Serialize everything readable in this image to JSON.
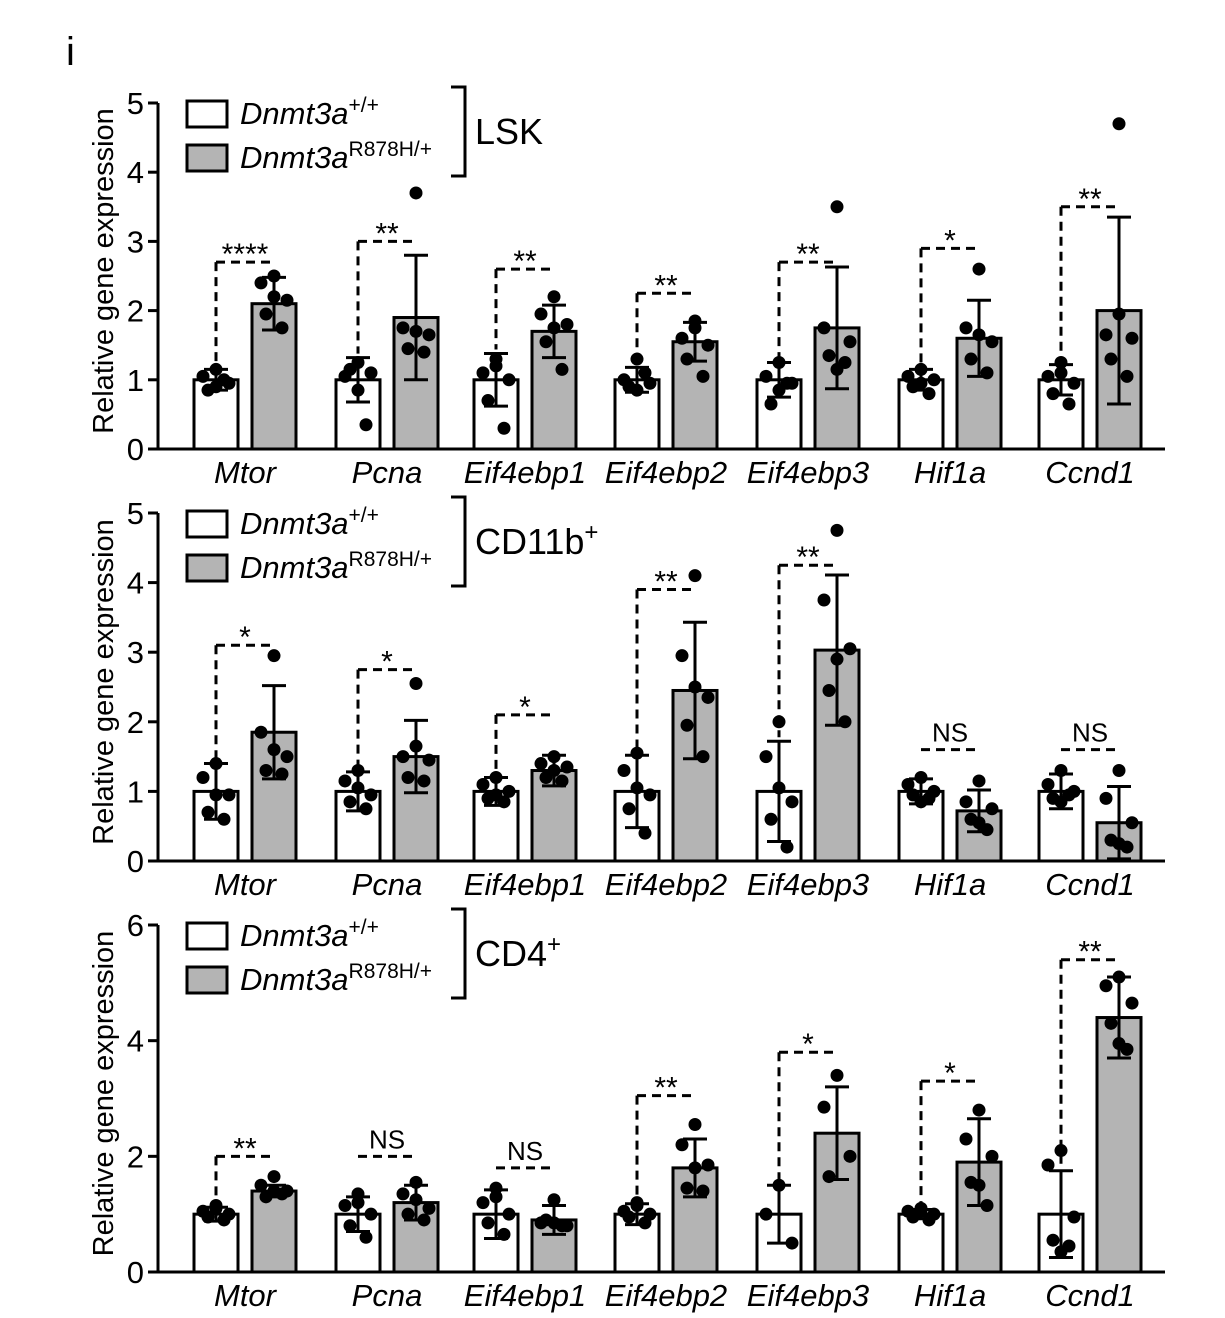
{
  "figure": {
    "panel_letter": "i"
  },
  "chart_data": [
    {
      "type": "bar",
      "title": "LSK",
      "title_superscript": "",
      "ylabel": "Relative gene expression",
      "ylim": [
        0,
        5
      ],
      "yticks": [
        0,
        1,
        2,
        3,
        4,
        5
      ],
      "categories": [
        "Mtor",
        "Pcna",
        "Eif4ebp1",
        "Eif4ebp2",
        "Eif4ebp3",
        "Hif1a",
        "Ccnd1"
      ],
      "legend": [
        {
          "base": "Dnmt3a",
          "sup": "+/+",
          "fill": "#ffffff"
        },
        {
          "base": "Dnmt3a",
          "sup": "R878H/+",
          "fill": "#b4b4b4"
        }
      ],
      "series": [
        {
          "values": [
            1.0,
            1.0,
            1.0,
            1.0,
            1.0,
            1.0,
            1.0
          ],
          "sd": [
            0.15,
            0.32,
            0.38,
            0.18,
            0.25,
            0.15,
            0.22
          ],
          "points": [
            [
              1.15,
              1.05,
              0.95,
              0.85,
              1.0,
              0.9
            ],
            [
              1.25,
              1.05,
              1.1,
              1.15,
              0.35,
              0.85
            ],
            [
              1.3,
              1.1,
              1.0,
              0.7,
              0.3,
              1.2
            ],
            [
              1.3,
              1.0,
              0.95,
              0.9,
              1.1,
              0.85
            ],
            [
              1.25,
              1.05,
              0.95,
              0.65,
              0.95,
              0.85
            ],
            [
              1.15,
              1.05,
              1.0,
              0.9,
              0.8,
              0.95
            ],
            [
              1.25,
              1.05,
              0.95,
              0.8,
              0.65,
              1.1
            ]
          ]
        },
        {
          "values": [
            2.1,
            1.9,
            1.7,
            1.55,
            1.75,
            1.6,
            2.0
          ],
          "sd": [
            0.38,
            0.9,
            0.38,
            0.28,
            0.88,
            0.55,
            1.35
          ],
          "points": [
            [
              2.5,
              2.4,
              2.15,
              1.95,
              1.75,
              2.2
            ],
            [
              3.7,
              1.75,
              1.65,
              1.45,
              1.4,
              1.7
            ],
            [
              2.2,
              1.95,
              1.8,
              1.55,
              1.15,
              1.75
            ],
            [
              1.85,
              1.6,
              1.5,
              1.3,
              1.05,
              1.75
            ],
            [
              3.5,
              1.75,
              1.55,
              1.35,
              1.25,
              1.15
            ],
            [
              2.6,
              1.75,
              1.55,
              1.3,
              1.1,
              1.65
            ],
            [
              4.7,
              1.65,
              1.6,
              1.3,
              1.05,
              1.95
            ]
          ]
        }
      ],
      "significance": [
        "****",
        "**",
        "**",
        "**",
        "**",
        "*",
        "**"
      ],
      "sig_y": [
        2.7,
        3.0,
        2.6,
        2.25,
        2.7,
        2.9,
        3.5
      ],
      "sig_left_dashed": [
        true,
        true,
        true,
        true,
        true,
        true,
        true
      ]
    },
    {
      "type": "bar",
      "title": "CD11b",
      "title_superscript": "+",
      "ylabel": "Relative gene expression",
      "ylim": [
        0,
        5
      ],
      "yticks": [
        0,
        1,
        2,
        3,
        4,
        5
      ],
      "categories": [
        "Mtor",
        "Pcna",
        "Eif4ebp1",
        "Eif4ebp2",
        "Eif4ebp3",
        "Hif1a",
        "Ccnd1"
      ],
      "legend": [
        {
          "base": "Dnmt3a",
          "sup": "+/+",
          "fill": "#ffffff"
        },
        {
          "base": "Dnmt3a",
          "sup": "R878H/+",
          "fill": "#b4b4b4"
        }
      ],
      "series": [
        {
          "values": [
            1.0,
            1.0,
            1.0,
            1.0,
            1.0,
            1.0,
            1.0
          ],
          "sd": [
            0.4,
            0.28,
            0.2,
            0.52,
            0.72,
            0.18,
            0.25
          ],
          "points": [
            [
              1.4,
              1.2,
              0.95,
              0.7,
              0.6,
              0.95
            ],
            [
              1.3,
              1.15,
              0.95,
              0.85,
              0.75,
              1.05
            ],
            [
              1.2,
              1.1,
              1.0,
              0.9,
              0.85,
              0.95
            ],
            [
              1.55,
              1.3,
              0.95,
              0.75,
              0.4,
              1.05
            ],
            [
              2.0,
              1.5,
              0.85,
              0.6,
              0.2,
              1.05
            ],
            [
              1.2,
              1.1,
              1.0,
              0.95,
              0.9,
              0.85
            ],
            [
              1.3,
              1.1,
              1.0,
              0.9,
              0.95,
              0.85
            ]
          ]
        },
        {
          "values": [
            1.85,
            1.5,
            1.3,
            2.45,
            3.03,
            0.72,
            0.55
          ],
          "sd": [
            0.67,
            0.52,
            0.22,
            0.98,
            1.08,
            0.3,
            0.52
          ],
          "points": [
            [
              2.95,
              1.85,
              1.5,
              1.3,
              1.25,
              1.6
            ],
            [
              2.55,
              1.5,
              1.45,
              1.2,
              1.15,
              1.65
            ],
            [
              1.5,
              1.4,
              1.35,
              1.2,
              1.15,
              1.3
            ],
            [
              4.1,
              2.95,
              2.35,
              1.95,
              1.5,
              2.5
            ],
            [
              4.75,
              3.75,
              3.05,
              2.45,
              2.0,
              2.9
            ],
            [
              1.15,
              0.85,
              0.75,
              0.6,
              0.45,
              0.55
            ],
            [
              1.3,
              0.9,
              0.55,
              0.3,
              0.2,
              0.25
            ]
          ]
        }
      ],
      "significance": [
        "*",
        "*",
        "*",
        "**",
        "**",
        "NS",
        "NS"
      ],
      "sig_y": [
        3.1,
        2.75,
        2.1,
        3.9,
        4.25,
        1.6,
        1.6
      ],
      "sig_left_dashed": [
        true,
        true,
        true,
        true,
        true,
        false,
        false
      ]
    },
    {
      "type": "bar",
      "title": "CD4",
      "title_superscript": "+",
      "ylabel": "Relative gene expression",
      "ylim": [
        0,
        6
      ],
      "yticks": [
        0,
        2,
        4,
        6
      ],
      "categories": [
        "Mtor",
        "Pcna",
        "Eif4ebp1",
        "Eif4ebp2",
        "Eif4ebp3",
        "Hif1a",
        "Ccnd1"
      ],
      "legend": [
        {
          "base": "Dnmt3a",
          "sup": "+/+",
          "fill": "#ffffff"
        },
        {
          "base": "Dnmt3a",
          "sup": "R878H/+",
          "fill": "#b4b4b4"
        }
      ],
      "series": [
        {
          "values": [
            1.0,
            1.0,
            1.0,
            1.0,
            1.0,
            1.0,
            1.0
          ],
          "sd": [
            0.12,
            0.3,
            0.42,
            0.18,
            0.5,
            0.08,
            0.75
          ],
          "points": [
            [
              1.1,
              1.05,
              1.0,
              0.95,
              0.9,
              1.15
            ],
            [
              1.35,
              1.15,
              1.0,
              0.8,
              0.6,
              1.2
            ],
            [
              1.45,
              1.2,
              1.0,
              0.85,
              0.65,
              1.3
            ],
            [
              1.2,
              1.05,
              1.0,
              0.95,
              0.85,
              1.15
            ],
            [
              1.5,
              1.0,
              0.5
            ],
            [
              1.1,
              1.05,
              1.0,
              0.95,
              0.9,
              1.05
            ],
            [
              2.1,
              1.85,
              0.95,
              0.55,
              0.45,
              0.35
            ]
          ]
        },
        {
          "values": [
            1.4,
            1.2,
            0.9,
            1.8,
            2.4,
            1.9,
            4.4
          ],
          "sd": [
            0.1,
            0.3,
            0.25,
            0.5,
            0.8,
            0.75,
            0.7
          ],
          "points": [
            [
              1.65,
              1.5,
              1.4,
              1.3,
              1.35,
              1.4
            ],
            [
              1.55,
              1.35,
              1.1,
              1.0,
              0.9,
              1.25
            ],
            [
              1.25,
              0.85,
              0.8,
              0.9,
              0.8,
              0.85
            ],
            [
              2.55,
              2.2,
              1.85,
              1.45,
              1.4,
              1.8
            ],
            [
              3.4,
              2.85,
              2.0,
              1.65
            ],
            [
              2.8,
              2.3,
              2.0,
              1.55,
              1.15,
              1.5
            ],
            [
              5.1,
              4.95,
              4.65,
              4.3,
              3.85,
              3.95
            ]
          ]
        }
      ],
      "significance": [
        "**",
        "NS",
        "NS",
        "**",
        "*",
        "*",
        "**"
      ],
      "sig_y": [
        2.0,
        2.0,
        1.8,
        3.05,
        3.8,
        3.3,
        5.4
      ],
      "sig_left_dashed": [
        true,
        false,
        false,
        true,
        true,
        true,
        true
      ]
    }
  ]
}
